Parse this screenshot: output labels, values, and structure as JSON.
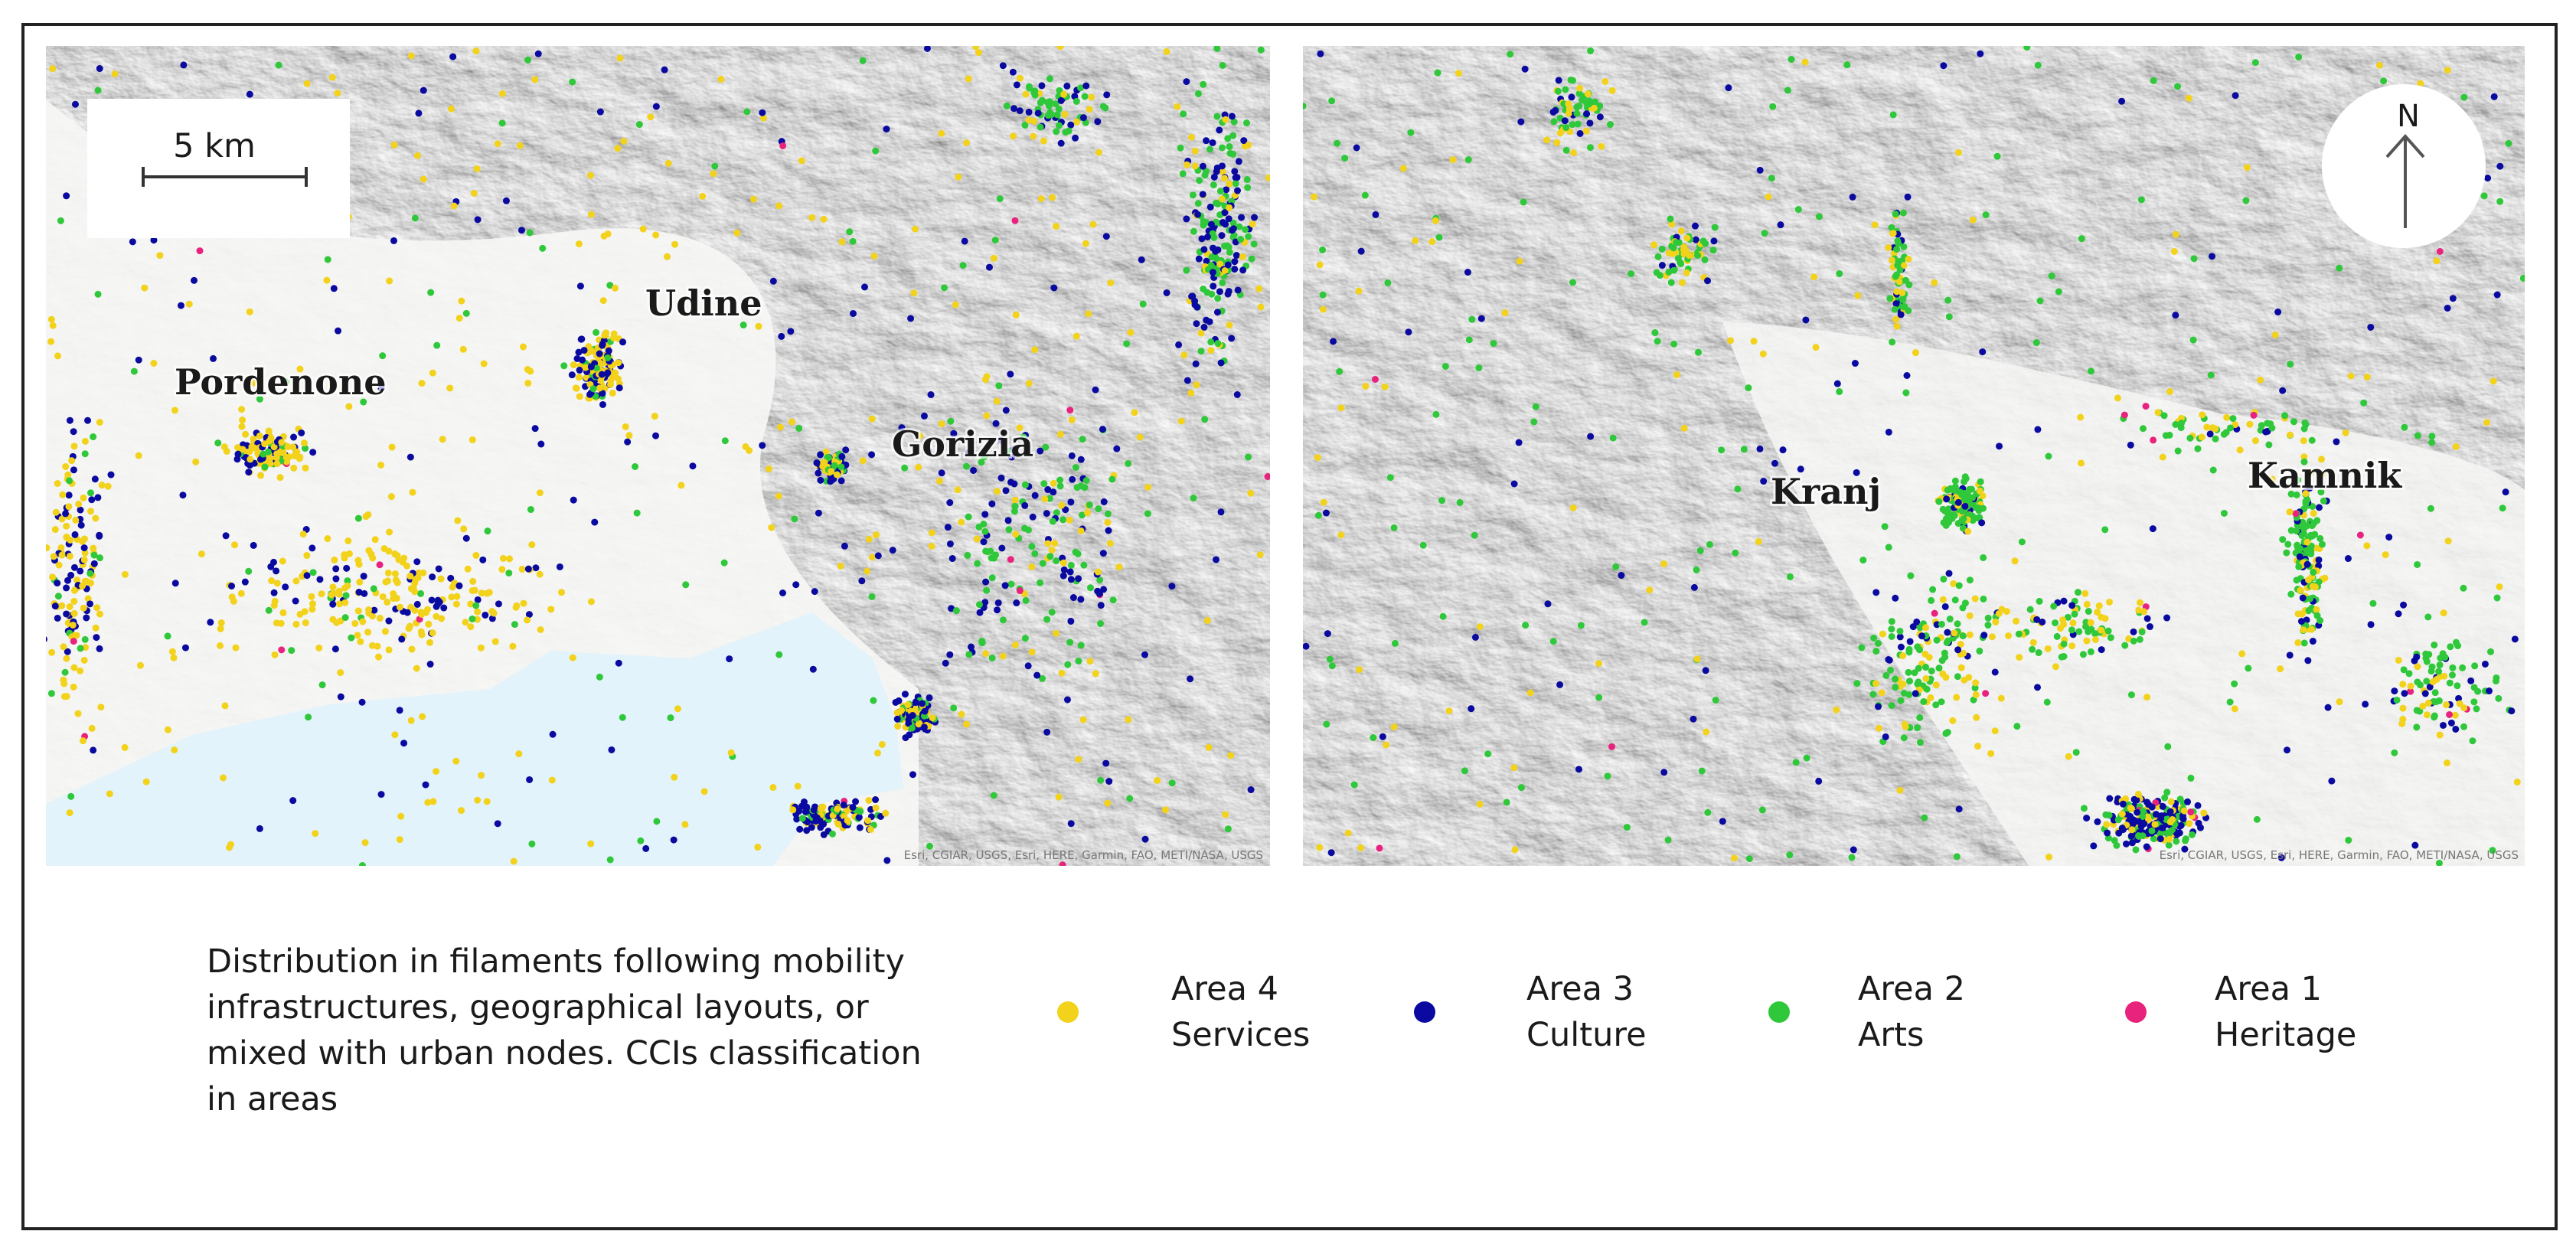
{
  "maps": [
    {
      "scale_bar": "5 km",
      "labels": [
        "Udine",
        "Pordenone",
        "Gorizia"
      ],
      "attribution": "Esri, CGIAR, USGS, Esri, HERE, Garmin, FAO, METI/NASA, USGS"
    },
    {
      "north": "N",
      "labels": [
        "Kranj",
        "Kamnik"
      ],
      "attribution": "Esri, CGIAR, USGS, Esri, HERE, Garmin, FAO, METI/NASA, USGS"
    }
  ],
  "caption": [
    "Distribution in filaments following mobility",
    "infrastructures, geographical layouts, or",
    "mixed with urban nodes. CCIs classification",
    "in areas"
  ],
  "legend": [
    {
      "code": "Area 4",
      "name": "Services",
      "color": "#f2d21b"
    },
    {
      "code": "Area 3",
      "name": "Culture",
      "color": "#0a0aa0"
    },
    {
      "code": "Area 2",
      "name": "Arts",
      "color": "#2fc83a"
    },
    {
      "code": "Area 1",
      "name": "Heritage",
      "color": "#e8237e"
    }
  ]
}
